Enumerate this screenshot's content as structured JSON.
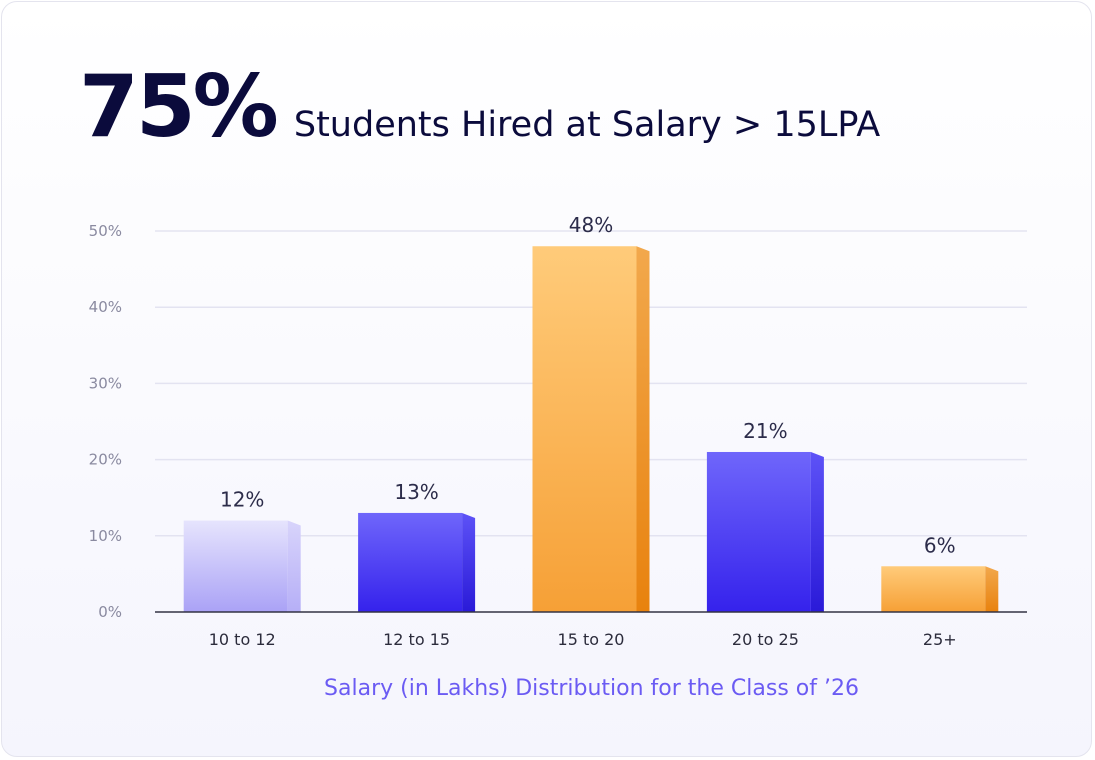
{
  "headline": {
    "stat": "75%",
    "text": "Students Hired at Salary > 15LPA"
  },
  "chart_data": {
    "type": "bar",
    "categories": [
      "10 to 12",
      "12 to 15",
      "15 to 20",
      "20 to 25",
      "25+"
    ],
    "values": [
      12,
      13,
      48,
      21,
      6
    ],
    "value_labels": [
      "12%",
      "13%",
      "48%",
      "21%",
      "6%"
    ],
    "ylim": [
      0,
      50
    ],
    "yticks": [
      0,
      10,
      20,
      30,
      40,
      50
    ],
    "ytick_labels": [
      "0%",
      "10%",
      "20%",
      "30%",
      "40%",
      "50%"
    ],
    "xlabel": "Salary (in Lakhs) Distribution for the Class of ’26",
    "ylabel": "",
    "grid": true,
    "legend": "none",
    "bar_styles": [
      "lavender",
      "blue",
      "orange",
      "blue",
      "orange"
    ],
    "colors": {
      "lavender": "#c9c4fb",
      "blue": "#4b3ff5",
      "orange": "#f6a63a",
      "text": "#0b0b3c",
      "tick": "#8a8aa0",
      "grid": "#e3e3f1",
      "axis": "#333344",
      "caption": "#6b5bf3"
    }
  }
}
